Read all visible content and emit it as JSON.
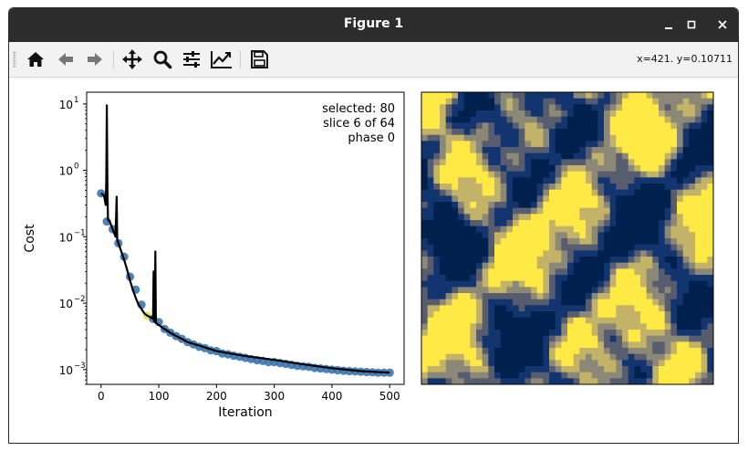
{
  "window": {
    "title": "Figure 1"
  },
  "toolbar": {
    "buttons": [
      {
        "icon": "home-icon"
      },
      {
        "icon": "back-arrow-icon"
      },
      {
        "icon": "forward-arrow-icon"
      },
      {
        "icon": "pan-move-icon"
      },
      {
        "icon": "zoom-magnifier-icon"
      },
      {
        "icon": "configure-subplots-icon"
      },
      {
        "icon": "edit-axis-icon"
      },
      {
        "icon": "save-disk-icon"
      }
    ],
    "coords": "x=421. y=0.10711"
  },
  "chart_data": [
    {
      "type": "line",
      "xlabel": "Iteration",
      "ylabel": "Cost",
      "yscale": "log",
      "xlim": [
        -25,
        525
      ],
      "ylim": [
        0.0006,
        15
      ],
      "xticks": [
        "0",
        "100",
        "200",
        "300",
        "400",
        "500"
      ],
      "xtick_values": [
        0,
        100,
        200,
        300,
        400,
        500
      ],
      "yticks": [
        "10",
        "10",
        "10",
        "10",
        "10"
      ],
      "ytick_exponents": [
        "1",
        "0",
        "−1",
        "−2",
        "−3"
      ],
      "ytick_values": [
        10,
        1,
        0.1,
        0.01,
        0.001
      ],
      "annotation": [
        "selected: 80",
        "slice 6 of 64",
        "phase 0"
      ],
      "line_color": "#000000",
      "marker_color": "#2f6fa8",
      "highlight_color": "#f0e442",
      "highlight_x": 80,
      "line": {
        "x": [
          0,
          5,
          8,
          9,
          10,
          11,
          12,
          15,
          20,
          25,
          27,
          28,
          29,
          30,
          35,
          40,
          45,
          50,
          55,
          60,
          65,
          70,
          75,
          80,
          85,
          90,
          91,
          92,
          93,
          94,
          95,
          96,
          97,
          98,
          100,
          110,
          120,
          130,
          140,
          150,
          170,
          200,
          250,
          300,
          350,
          400,
          450,
          500
        ],
        "y": [
          0.45,
          0.42,
          0.3,
          0.7,
          9.5,
          0.5,
          0.18,
          0.17,
          0.13,
          0.1,
          0.4,
          0.09,
          0.085,
          0.08,
          0.06,
          0.045,
          0.032,
          0.022,
          0.016,
          0.012,
          0.0095,
          0.0082,
          0.007,
          0.0065,
          0.0062,
          0.0058,
          0.03,
          0.0055,
          0.0052,
          0.06,
          0.0051,
          0.005,
          0.0049,
          0.0048,
          0.0047,
          0.0041,
          0.0036,
          0.0032,
          0.0029,
          0.0026,
          0.0023,
          0.0019,
          0.0016,
          0.0014,
          0.0012,
          0.00105,
          0.00095,
          0.0009
        ]
      },
      "points": {
        "x": [
          0,
          10,
          20,
          30,
          40,
          50,
          60,
          70,
          80,
          90,
          100,
          110,
          120,
          130,
          140,
          150,
          160,
          170,
          180,
          190,
          200,
          210,
          220,
          230,
          240,
          250,
          260,
          270,
          280,
          290,
          300,
          310,
          320,
          330,
          340,
          350,
          360,
          370,
          380,
          390,
          400,
          410,
          420,
          430,
          440,
          450,
          460,
          470,
          480,
          490,
          500
        ],
        "y": [
          0.45,
          0.17,
          0.13,
          0.08,
          0.05,
          0.025,
          0.016,
          0.0095,
          0.0065,
          0.0058,
          0.0052,
          0.0041,
          0.0036,
          0.0032,
          0.0029,
          0.0026,
          0.0024,
          0.0022,
          0.0021,
          0.00195,
          0.0019,
          0.00175,
          0.0017,
          0.00162,
          0.00156,
          0.0015,
          0.00144,
          0.00139,
          0.00135,
          0.0013,
          0.0013,
          0.00126,
          0.00122,
          0.00118,
          0.00114,
          0.00112,
          0.0011,
          0.00106,
          0.00104,
          0.00102,
          0.001,
          0.00098,
          0.00096,
          0.00095,
          0.00094,
          0.00093,
          0.00092,
          0.00091,
          0.0009,
          0.0009,
          0.0009
        ]
      }
    },
    {
      "type": "heatmap",
      "grid": 48,
      "colormap": [
        "#00204d",
        "#123570",
        "#575c6e",
        "#8b8878",
        "#c3b369",
        "#ffe945"
      ]
    }
  ]
}
